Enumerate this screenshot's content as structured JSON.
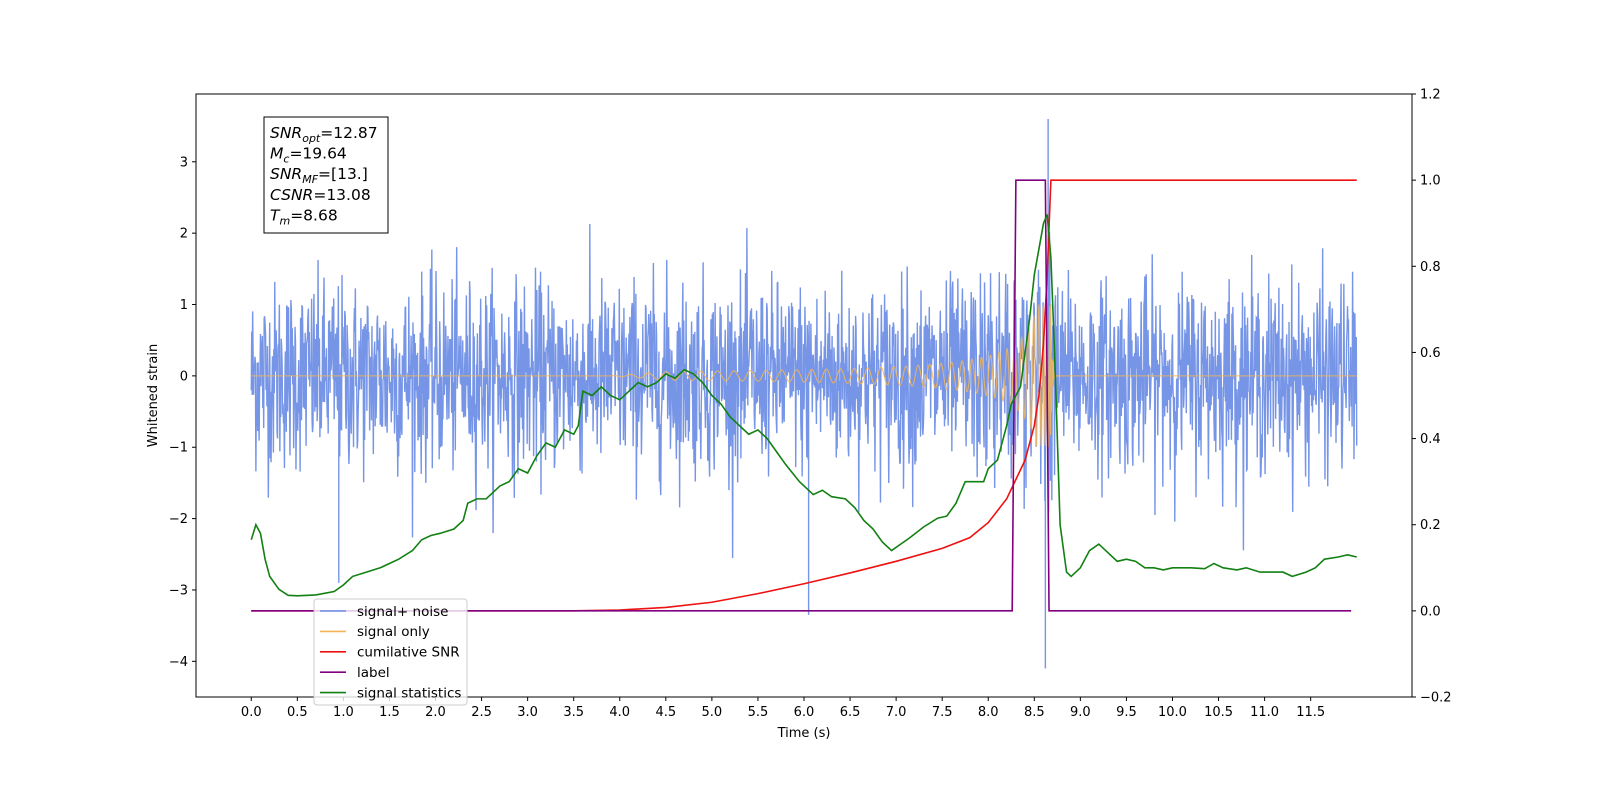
{
  "chart_data": {
    "type": "line",
    "xlabel": "Time (s)",
    "ylabel": "Whitened strain",
    "xlim": [
      -0.6,
      12.6
    ],
    "ylim": [
      -4.5,
      3.95
    ],
    "ylim_right": [
      -0.2,
      1.2
    ],
    "x_ticks": [
      "0.0",
      "0.5",
      "1.0",
      "1.5",
      "2.0",
      "2.5",
      "3.0",
      "3.5",
      "4.0",
      "4.5",
      "5.0",
      "5.5",
      "6.0",
      "6.5",
      "7.0",
      "7.5",
      "8.0",
      "8.5",
      "9.0",
      "9.5",
      "10.0",
      "10.5",
      "11.0",
      "11.5"
    ],
    "y_ticks": [
      "3",
      "2",
      "1",
      "0",
      "−1",
      "−2",
      "−3",
      "−4"
    ],
    "y_ticks_right": [
      "1.2",
      "1.0",
      "0.8",
      "0.6",
      "0.4",
      "0.2",
      "0.0",
      "−0.2"
    ],
    "legend_position": "lower-left",
    "info_box": {
      "lines": [
        {
          "var": "SNR",
          "sub": "opt",
          "value": "=12.87"
        },
        {
          "var": "M",
          "sub": "c",
          "value": "=19.64"
        },
        {
          "var": "SNR",
          "sub": "MF",
          "value": "=[13.]"
        },
        {
          "var": "CSNR",
          "sub": "",
          "value": "=13.08"
        },
        {
          "var": "T",
          "sub": "m",
          "value": "=8.68"
        }
      ]
    },
    "series": [
      {
        "name": "signal+ noise",
        "axis": "left",
        "color": "#6f8fe6",
        "description_points": {
          "noise_std": 0.65,
          "x_range": [
            0.0,
            12.0
          ],
          "extremes": [
            [
              8.65,
              3.6
            ],
            [
              8.62,
              -4.1
            ],
            [
              6.05,
              -3.35
            ],
            [
              0.95,
              -2.9
            ]
          ]
        }
      },
      {
        "name": "signal only",
        "axis": "left",
        "color": "#f5b556",
        "description_points": {
          "x_range": [
            0.0,
            12.0
          ],
          "chirp_start": 4.5,
          "merger": 8.68,
          "peak_amplitude": 1.0
        }
      },
      {
        "name": "cumilative SNR",
        "axis": "right",
        "color": "#ee1111",
        "points": [
          [
            0.0,
            0.0
          ],
          [
            3.5,
            0.0
          ],
          [
            4.0,
            0.002
          ],
          [
            4.5,
            0.008
          ],
          [
            5.0,
            0.02
          ],
          [
            5.5,
            0.04
          ],
          [
            6.0,
            0.063
          ],
          [
            6.5,
            0.088
          ],
          [
            7.0,
            0.115
          ],
          [
            7.5,
            0.145
          ],
          [
            7.8,
            0.17
          ],
          [
            8.0,
            0.205
          ],
          [
            8.2,
            0.26
          ],
          [
            8.4,
            0.35
          ],
          [
            8.5,
            0.43
          ],
          [
            8.55,
            0.5
          ],
          [
            8.6,
            0.62
          ],
          [
            8.64,
            0.78
          ],
          [
            8.68,
            1.0
          ],
          [
            12.0,
            1.0
          ]
        ]
      },
      {
        "name": "label",
        "axis": "right",
        "color": "#800080",
        "points": [
          [
            0.0,
            0.0
          ],
          [
            8.26,
            0.0
          ],
          [
            8.3,
            1.0
          ],
          [
            8.62,
            1.0
          ],
          [
            8.66,
            0.0
          ],
          [
            11.94,
            0.0
          ]
        ]
      },
      {
        "name": "signal statistics",
        "axis": "right",
        "color": "#138013",
        "points": [
          [
            0.0,
            0.165
          ],
          [
            0.05,
            0.2
          ],
          [
            0.1,
            0.18
          ],
          [
            0.15,
            0.12
          ],
          [
            0.2,
            0.08
          ],
          [
            0.3,
            0.05
          ],
          [
            0.4,
            0.036
          ],
          [
            0.5,
            0.035
          ],
          [
            0.7,
            0.037
          ],
          [
            0.9,
            0.045
          ],
          [
            1.0,
            0.06
          ],
          [
            1.1,
            0.08
          ],
          [
            1.25,
            0.09
          ],
          [
            1.4,
            0.1
          ],
          [
            1.5,
            0.11
          ],
          [
            1.6,
            0.12
          ],
          [
            1.75,
            0.14
          ],
          [
            1.85,
            0.165
          ],
          [
            1.95,
            0.175
          ],
          [
            2.05,
            0.18
          ],
          [
            2.2,
            0.19
          ],
          [
            2.3,
            0.21
          ],
          [
            2.35,
            0.25
          ],
          [
            2.45,
            0.26
          ],
          [
            2.55,
            0.26
          ],
          [
            2.7,
            0.29
          ],
          [
            2.8,
            0.3
          ],
          [
            2.9,
            0.33
          ],
          [
            3.0,
            0.32
          ],
          [
            3.1,
            0.36
          ],
          [
            3.2,
            0.39
          ],
          [
            3.3,
            0.38
          ],
          [
            3.4,
            0.42
          ],
          [
            3.5,
            0.41
          ],
          [
            3.55,
            0.43
          ],
          [
            3.6,
            0.51
          ],
          [
            3.7,
            0.5
          ],
          [
            3.8,
            0.52
          ],
          [
            3.9,
            0.5
          ],
          [
            4.0,
            0.49
          ],
          [
            4.1,
            0.51
          ],
          [
            4.2,
            0.53
          ],
          [
            4.3,
            0.52
          ],
          [
            4.4,
            0.53
          ],
          [
            4.5,
            0.55
          ],
          [
            4.6,
            0.54
          ],
          [
            4.7,
            0.56
          ],
          [
            4.8,
            0.55
          ],
          [
            4.9,
            0.53
          ],
          [
            5.0,
            0.5
          ],
          [
            5.1,
            0.48
          ],
          [
            5.2,
            0.45
          ],
          [
            5.3,
            0.43
          ],
          [
            5.4,
            0.41
          ],
          [
            5.5,
            0.42
          ],
          [
            5.6,
            0.4
          ],
          [
            5.7,
            0.37
          ],
          [
            5.8,
            0.34
          ],
          [
            5.95,
            0.3
          ],
          [
            6.1,
            0.27
          ],
          [
            6.2,
            0.28
          ],
          [
            6.3,
            0.265
          ],
          [
            6.45,
            0.26
          ],
          [
            6.55,
            0.24
          ],
          [
            6.65,
            0.21
          ],
          [
            6.75,
            0.19
          ],
          [
            6.85,
            0.16
          ],
          [
            6.95,
            0.14
          ],
          [
            7.05,
            0.155
          ],
          [
            7.15,
            0.17
          ],
          [
            7.3,
            0.195
          ],
          [
            7.45,
            0.215
          ],
          [
            7.55,
            0.22
          ],
          [
            7.65,
            0.25
          ],
          [
            7.75,
            0.3
          ],
          [
            7.85,
            0.3
          ],
          [
            7.95,
            0.3
          ],
          [
            8.0,
            0.33
          ],
          [
            8.1,
            0.35
          ],
          [
            8.2,
            0.43
          ],
          [
            8.25,
            0.48
          ],
          [
            8.3,
            0.5
          ],
          [
            8.35,
            0.52
          ],
          [
            8.4,
            0.6
          ],
          [
            8.45,
            0.68
          ],
          [
            8.5,
            0.78
          ],
          [
            8.55,
            0.84
          ],
          [
            8.6,
            0.9
          ],
          [
            8.64,
            0.92
          ],
          [
            8.68,
            0.82
          ],
          [
            8.72,
            0.6
          ],
          [
            8.78,
            0.2
          ],
          [
            8.85,
            0.09
          ],
          [
            8.9,
            0.08
          ],
          [
            9.0,
            0.1
          ],
          [
            9.1,
            0.14
          ],
          [
            9.2,
            0.155
          ],
          [
            9.3,
            0.135
          ],
          [
            9.4,
            0.115
          ],
          [
            9.5,
            0.12
          ],
          [
            9.6,
            0.115
          ],
          [
            9.7,
            0.1
          ],
          [
            9.8,
            0.1
          ],
          [
            9.9,
            0.095
          ],
          [
            10.0,
            0.1
          ],
          [
            10.2,
            0.1
          ],
          [
            10.35,
            0.098
          ],
          [
            10.45,
            0.11
          ],
          [
            10.55,
            0.1
          ],
          [
            10.7,
            0.095
          ],
          [
            10.8,
            0.1
          ],
          [
            10.95,
            0.09
          ],
          [
            11.1,
            0.09
          ],
          [
            11.2,
            0.09
          ],
          [
            11.3,
            0.08
          ],
          [
            11.45,
            0.09
          ],
          [
            11.55,
            0.1
          ],
          [
            11.65,
            0.12
          ],
          [
            11.8,
            0.125
          ],
          [
            11.9,
            0.13
          ],
          [
            12.0,
            0.125
          ]
        ]
      }
    ]
  }
}
